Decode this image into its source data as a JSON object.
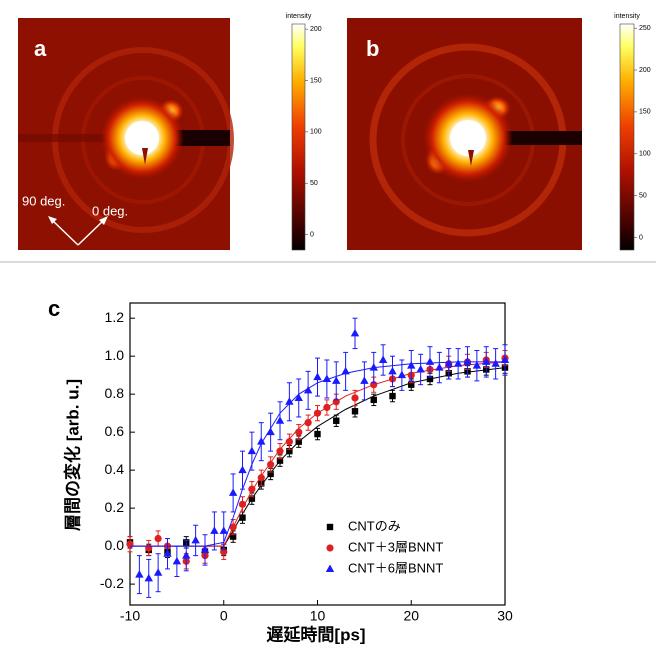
{
  "chart_data": [
    {
      "type": "colorbar",
      "panel": "a",
      "label": "intensity",
      "annotations": [
        "90 deg.",
        "0 deg."
      ],
      "ylim": [
        -15,
        205
      ],
      "yticks": [
        0,
        50,
        100,
        150,
        200
      ]
    },
    {
      "type": "colorbar",
      "panel": "b",
      "label": "intensity",
      "ylim": [
        -15,
        255
      ],
      "yticks": [
        0,
        50,
        100,
        150,
        200,
        250
      ]
    },
    {
      "type": "scatter",
      "panel": "c",
      "x_label": "遅延時間[ps]",
      "y_label": "層間の変化 [arb. u.]",
      "xlim": [
        -10,
        30
      ],
      "xticks": [
        -10,
        0,
        10,
        20,
        30
      ],
      "ylim": [
        -0.31,
        1.28
      ],
      "yticks": [
        -0.2,
        {
          "value": 0,
          "label": "0.0"
        },
        0.2,
        0.4,
        0.6,
        0.8,
        {
          "value": 1,
          "label": "1.0"
        },
        1.2
      ],
      "legend": "lower right",
      "series": [
        {
          "name": "CNTのみ",
          "color": "#000000",
          "marker": "square",
          "x": [
            -10,
            -8,
            -6,
            -4,
            -2,
            0,
            1,
            2,
            3,
            4,
            5,
            6,
            7,
            8,
            10,
            12,
            14,
            16,
            18,
            20,
            22,
            24,
            26,
            28,
            30
          ],
          "values": [
            0.02,
            -0.02,
            -0.03,
            0.02,
            -0.03,
            -0.02,
            0.05,
            0.15,
            0.25,
            0.33,
            0.38,
            0.45,
            0.5,
            0.55,
            0.59,
            0.66,
            0.71,
            0.77,
            0.79,
            0.85,
            0.88,
            0.91,
            0.92,
            0.93,
            0.94
          ],
          "errors": [
            0.03,
            0.03,
            0.03,
            0.03,
            0.03,
            0.03,
            0.03,
            0.03,
            0.03,
            0.03,
            0.03,
            0.03,
            0.03,
            0.03,
            0.03,
            0.03,
            0.03,
            0.03,
            0.03,
            0.03,
            0.03,
            0.03,
            0.03,
            0.03,
            0.03
          ],
          "fit_x": [
            -10,
            -2,
            0,
            1,
            2,
            3,
            4,
            6,
            8,
            10,
            13,
            16,
            20,
            25,
            30
          ],
          "fit_values": [
            0,
            0,
            0,
            0.08,
            0.17,
            0.25,
            0.32,
            0.45,
            0.55,
            0.63,
            0.72,
            0.79,
            0.86,
            0.91,
            0.94
          ]
        },
        {
          "name": "CNT＋3層BNNT",
          "color": "#e02020",
          "marker": "circle",
          "x": [
            -10,
            -8,
            -7,
            -6,
            -4,
            -2,
            0,
            1,
            2,
            3,
            4,
            5,
            6,
            7,
            8,
            9,
            10,
            11,
            12,
            14,
            16,
            18,
            20,
            22,
            24,
            26,
            28,
            30
          ],
          "values": [
            0.01,
            -0.01,
            0.04,
            0.0,
            -0.08,
            -0.05,
            -0.03,
            0.1,
            0.22,
            0.3,
            0.36,
            0.43,
            0.5,
            0.55,
            0.6,
            0.65,
            0.7,
            0.73,
            0.76,
            0.78,
            0.85,
            0.88,
            0.9,
            0.93,
            0.96,
            0.97,
            0.98,
            0.99
          ],
          "errors": [
            0.04,
            0.04,
            0.04,
            0.04,
            0.04,
            0.04,
            0.04,
            0.04,
            0.04,
            0.04,
            0.04,
            0.04,
            0.04,
            0.04,
            0.04,
            0.04,
            0.04,
            0.04,
            0.04,
            0.04,
            0.04,
            0.04,
            0.04,
            0.04,
            0.04,
            0.04,
            0.04,
            0.04
          ],
          "fit_x": [
            -10,
            -2,
            0,
            1,
            2,
            3,
            4,
            6,
            8,
            10,
            13,
            16,
            20,
            25,
            30
          ],
          "fit_values": [
            0,
            0,
            0,
            0.1,
            0.2,
            0.29,
            0.37,
            0.51,
            0.62,
            0.7,
            0.79,
            0.85,
            0.91,
            0.95,
            0.97
          ]
        },
        {
          "name": "CNT＋6層BNNT",
          "color": "#1a1aff",
          "marker": "triangle",
          "x": [
            -9,
            -8,
            -7,
            -6,
            -5,
            -4,
            -3,
            -2,
            -1,
            0,
            1,
            2,
            3,
            4,
            5,
            6,
            7,
            8,
            9,
            10,
            11,
            12,
            13,
            14,
            15,
            16,
            17,
            18,
            19,
            20,
            21,
            22,
            23,
            24,
            25,
            26,
            27,
            28,
            29,
            30
          ],
          "values": [
            -0.15,
            -0.17,
            -0.14,
            -0.04,
            -0.08,
            -0.05,
            0.03,
            -0.02,
            0.08,
            0.08,
            0.28,
            0.4,
            0.5,
            0.55,
            0.6,
            0.66,
            0.76,
            0.78,
            0.82,
            0.89,
            0.88,
            0.87,
            0.92,
            1.12,
            0.87,
            0.94,
            0.98,
            0.92,
            0.9,
            0.95,
            0.93,
            0.97,
            0.94,
            0.96,
            0.96,
            0.97,
            0.95,
            0.97,
            0.96,
            0.98
          ],
          "errors": [
            0.1,
            0.1,
            0.1,
            0.08,
            0.08,
            0.08,
            0.08,
            0.08,
            0.1,
            0.1,
            0.1,
            0.1,
            0.1,
            0.1,
            0.1,
            0.1,
            0.1,
            0.1,
            0.1,
            0.1,
            0.1,
            0.1,
            0.1,
            0.08,
            0.1,
            0.08,
            0.08,
            0.08,
            0.08,
            0.08,
            0.08,
            0.08,
            0.08,
            0.08,
            0.08,
            0.08,
            0.08,
            0.08,
            0.08,
            0.08
          ],
          "fit_x": [
            -10,
            -2,
            0,
            1,
            2,
            3,
            4,
            6,
            8,
            10,
            13,
            16,
            20,
            25,
            30
          ],
          "fit_values": [
            0,
            0,
            0.02,
            0.15,
            0.3,
            0.43,
            0.54,
            0.7,
            0.8,
            0.86,
            0.91,
            0.94,
            0.96,
            0.97,
            0.97
          ]
        }
      ]
    }
  ]
}
